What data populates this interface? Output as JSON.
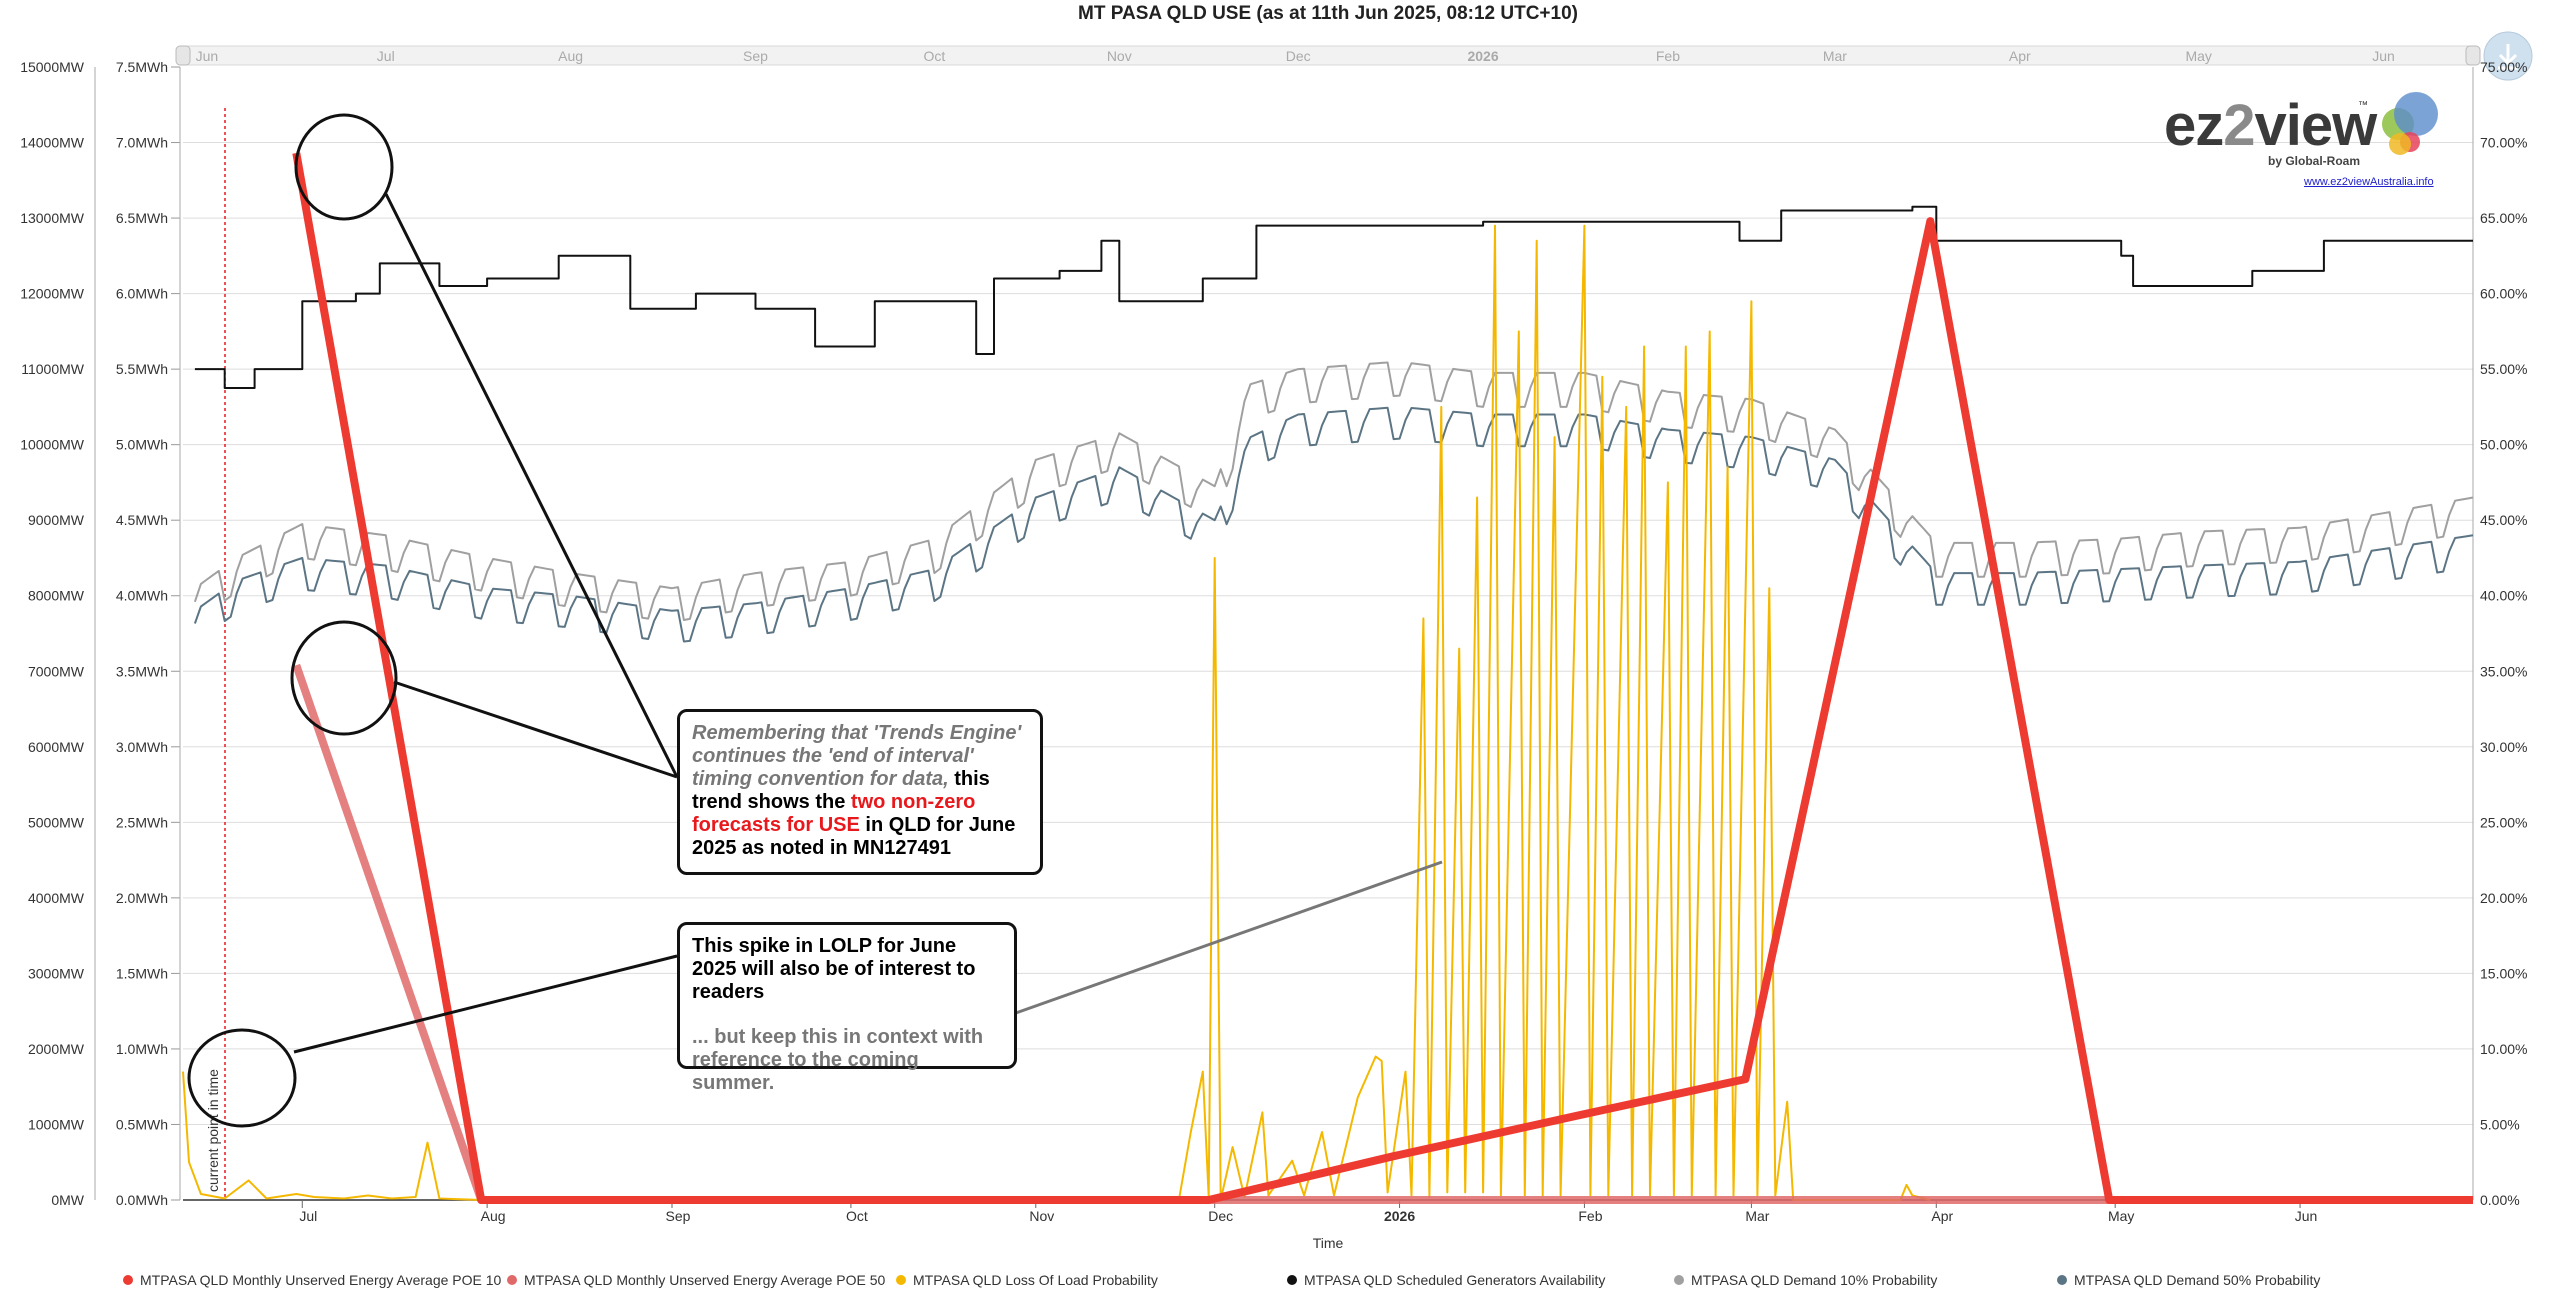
{
  "title": "MT PASA QLD USE (as at 11th Jun 2025, 08:12 UTC+10)",
  "colors": {
    "poe10": "#ee3b32",
    "poe50": "#e06a6a",
    "lolp": "#f5b800",
    "availability": "#111111",
    "demand10": "#a0a0a0",
    "demand50": "#5c7585",
    "marker": "#e8191d"
  },
  "navigator": {
    "labels": [
      "Jun",
      "Jul",
      "Aug",
      "Sep",
      "Oct",
      "Nov",
      "Dec",
      "2026",
      "Feb",
      "Mar",
      "Apr",
      "May",
      "Jun"
    ]
  },
  "axes": {
    "left_mw_ticks": [
      "15000MW",
      "14000MW",
      "13000MW",
      "12000MW",
      "11000MW",
      "10000MW",
      "9000MW",
      "8000MW",
      "7000MW",
      "6000MW",
      "5000MW",
      "4000MW",
      "3000MW",
      "2000MW",
      "1000MW",
      "0MW"
    ],
    "left_mwh_ticks": [
      "7.5MWh",
      "7.0MWh",
      "6.5MWh",
      "6.0MWh",
      "5.5MWh",
      "5.0MWh",
      "4.5MWh",
      "4.0MWh",
      "3.5MWh",
      "3.0MWh",
      "2.5MWh",
      "2.0MWh",
      "1.5MWh",
      "1.0MWh",
      "0.5MWh",
      "0.0MWh"
    ],
    "right_pct_ticks": [
      "75.00%",
      "70.00%",
      "65.00%",
      "60.00%",
      "55.00%",
      "50.00%",
      "45.00%",
      "40.00%",
      "35.00%",
      "30.00%",
      "25.00%",
      "20.00%",
      "15.00%",
      "10.00%",
      "5.00%",
      "0.00%"
    ],
    "x_ticks": [
      "Jul",
      "Aug",
      "Sep",
      "Oct",
      "Nov",
      "Dec",
      "2026",
      "Feb",
      "Mar",
      "Apr",
      "May",
      "Jun"
    ],
    "xlabel": "Time",
    "current_time_label": "current point in time"
  },
  "chart_data": {
    "type": "line",
    "title": "MT PASA QLD USE (as at 11th Jun 2025, 08:12 UTC+10)",
    "xlabel": "Time",
    "ylabel": "",
    "x_range": [
      "2025-06-11",
      "2026-06-30"
    ],
    "y_left_mw_range": [
      0,
      15000
    ],
    "y_left_mwh_range": [
      0,
      7.5
    ],
    "y_right_pct_range": [
      0,
      75
    ],
    "grid": true,
    "legend_position": "bottom",
    "current_time": "2025-06-11",
    "series": [
      {
        "name": "MTPASA QLD Monthly Unserved Energy Average POE 10",
        "axis": "MWh",
        "points": [
          [
            "2025-06-30",
            6.93
          ],
          [
            "2025-07-31",
            0
          ],
          [
            "2025-08-31",
            0
          ],
          [
            "2025-09-30",
            0
          ],
          [
            "2025-10-31",
            0
          ],
          [
            "2025-11-30",
            0
          ],
          [
            "2025-12-31",
            0.29
          ],
          [
            "2026-01-31",
            0.56
          ],
          [
            "2026-02-28",
            0.8
          ],
          [
            "2026-03-31",
            6.48
          ],
          [
            "2026-04-30",
            0
          ],
          [
            "2026-05-31",
            0
          ],
          [
            "2026-06-30",
            0
          ]
        ]
      },
      {
        "name": "MTPASA QLD Monthly Unserved Energy Average POE 50",
        "axis": "MWh",
        "points": [
          [
            "2025-06-30",
            3.54
          ],
          [
            "2025-07-31",
            0
          ],
          [
            "2025-08-31",
            0
          ],
          [
            "2025-09-30",
            0
          ],
          [
            "2025-10-31",
            0
          ],
          [
            "2025-11-30",
            0
          ],
          [
            "2025-12-31",
            0
          ],
          [
            "2026-01-31",
            0
          ],
          [
            "2026-02-28",
            0
          ],
          [
            "2026-03-31",
            0
          ],
          [
            "2026-04-30",
            0
          ],
          [
            "2026-05-31",
            0
          ],
          [
            "2026-06-30",
            0
          ]
        ]
      },
      {
        "name": "MTPASA QLD Loss Of Load Probability",
        "axis": "percent",
        "points": [
          [
            "2025-06-11",
            8.5
          ],
          [
            "2025-06-12",
            2.5
          ],
          [
            "2025-06-14",
            0.4
          ],
          [
            "2025-06-18",
            0.1
          ],
          [
            "2025-06-22",
            1.3
          ],
          [
            "2025-06-25",
            0.1
          ],
          [
            "2025-06-30",
            0.4
          ],
          [
            "2025-07-03",
            0.2
          ],
          [
            "2025-07-08",
            0.1
          ],
          [
            "2025-07-12",
            0.3
          ],
          [
            "2025-07-16",
            0.1
          ],
          [
            "2025-07-20",
            0.2
          ],
          [
            "2025-07-22",
            3.8
          ],
          [
            "2025-07-24",
            0.1
          ],
          [
            "2025-07-31",
            0
          ],
          [
            "2025-11-25",
            0
          ],
          [
            "2025-11-27",
            4.5
          ],
          [
            "2025-11-29",
            8.5
          ],
          [
            "2025-11-30",
            0.2
          ],
          [
            "2025-12-01",
            42.5
          ],
          [
            "2025-12-02",
            0
          ],
          [
            "2025-12-04",
            3.5
          ],
          [
            "2025-12-06",
            0.2
          ],
          [
            "2025-12-09",
            5.8
          ],
          [
            "2025-12-10",
            0.3
          ],
          [
            "2025-12-14",
            2.6
          ],
          [
            "2025-12-16",
            0.3
          ],
          [
            "2025-12-19",
            4.5
          ],
          [
            "2025-12-21",
            0.3
          ],
          [
            "2025-12-25",
            6.8
          ],
          [
            "2025-12-28",
            9.5
          ],
          [
            "2025-12-29",
            9.2
          ],
          [
            "2025-12-30",
            0.5
          ],
          [
            "2026-01-02",
            8.5
          ],
          [
            "2026-01-03",
            0.3
          ],
          [
            "2026-01-05",
            38.5
          ],
          [
            "2026-01-06",
            0.2
          ],
          [
            "2026-01-08",
            52.5
          ],
          [
            "2026-01-09",
            0.5
          ],
          [
            "2026-01-11",
            36.5
          ],
          [
            "2026-01-12",
            0.5
          ],
          [
            "2026-01-14",
            46.5
          ],
          [
            "2026-01-15",
            0.5
          ],
          [
            "2026-01-17",
            64.5
          ],
          [
            "2026-01-18",
            0.3
          ],
          [
            "2026-01-21",
            57.5
          ],
          [
            "2026-01-22",
            0.3
          ],
          [
            "2026-01-24",
            63.5
          ],
          [
            "2026-01-25",
            0.3
          ],
          [
            "2026-01-27",
            50.5
          ],
          [
            "2026-01-28",
            0.3
          ],
          [
            "2026-02-01",
            64.5
          ],
          [
            "2026-02-02",
            0.3
          ],
          [
            "2026-02-04",
            54.5
          ],
          [
            "2026-02-05",
            0.3
          ],
          [
            "2026-02-08",
            52.5
          ],
          [
            "2026-02-09",
            0.3
          ],
          [
            "2026-02-11",
            56.5
          ],
          [
            "2026-02-12",
            0.3
          ],
          [
            "2026-02-15",
            47.5
          ],
          [
            "2026-02-16",
            0.3
          ],
          [
            "2026-02-18",
            56.5
          ],
          [
            "2026-02-19",
            0.3
          ],
          [
            "2026-02-22",
            57.5
          ],
          [
            "2026-02-23",
            0.3
          ],
          [
            "2026-02-25",
            48.5
          ],
          [
            "2026-02-26",
            0.3
          ],
          [
            "2026-03-01",
            59.5
          ],
          [
            "2026-03-02",
            0.3
          ],
          [
            "2026-03-04",
            40.5
          ],
          [
            "2026-03-05",
            0.3
          ],
          [
            "2026-03-07",
            6.5
          ],
          [
            "2026-03-08",
            0
          ],
          [
            "2026-03-26",
            0
          ],
          [
            "2026-03-27",
            1
          ],
          [
            "2026-03-28",
            0.3
          ],
          [
            "2026-03-31",
            0
          ]
        ]
      },
      {
        "name": "MTPASA QLD Scheduled Generators Availability",
        "axis": "MW",
        "points": [
          [
            "2025-06-13",
            11000
          ],
          [
            "2025-06-18",
            10750
          ],
          [
            "2025-06-23",
            11000
          ],
          [
            "2025-07-01",
            11900
          ],
          [
            "2025-07-10",
            12000
          ],
          [
            "2025-07-14",
            12400
          ],
          [
            "2025-07-24",
            12100
          ],
          [
            "2025-08-01",
            12200
          ],
          [
            "2025-08-13",
            12500
          ],
          [
            "2025-08-25",
            11800
          ],
          [
            "2025-09-05",
            12000
          ],
          [
            "2025-09-15",
            11800
          ],
          [
            "2025-09-25",
            11300
          ],
          [
            "2025-10-05",
            11900
          ],
          [
            "2025-10-15",
            11900
          ],
          [
            "2025-10-22",
            11200
          ],
          [
            "2025-10-25",
            12200
          ],
          [
            "2025-11-05",
            12300
          ],
          [
            "2025-11-12",
            12700
          ],
          [
            "2025-11-15",
            11900
          ],
          [
            "2025-11-29",
            12200
          ],
          [
            "2025-12-08",
            12900
          ],
          [
            "2026-01-15",
            12950
          ],
          [
            "2026-02-25",
            12950
          ],
          [
            "2026-02-27",
            12700
          ],
          [
            "2026-03-06",
            13100
          ],
          [
            "2026-03-28",
            13150
          ],
          [
            "2026-04-01",
            12700
          ],
          [
            "2026-04-29",
            12700
          ],
          [
            "2026-05-02",
            12500
          ],
          [
            "2026-05-04",
            12100
          ],
          [
            "2026-05-24",
            12300
          ],
          [
            "2026-06-04",
            12300
          ],
          [
            "2026-06-05",
            12700
          ],
          [
            "2026-06-30",
            12700
          ]
        ]
      },
      {
        "name": "MTPASA QLD Demand 10% Probability",
        "axis": "MW",
        "points": [
          [
            "2025-06-13",
            8100
          ],
          [
            "2025-06-20",
            8500
          ],
          [
            "2025-07-01",
            8950
          ],
          [
            "2025-07-15",
            8800
          ],
          [
            "2025-08-01",
            8500
          ],
          [
            "2025-08-15",
            8300
          ],
          [
            "2025-09-01",
            8100
          ],
          [
            "2025-09-15",
            8300
          ],
          [
            "2025-10-01",
            8450
          ],
          [
            "2025-10-15",
            8750
          ],
          [
            "2025-11-01",
            9800
          ],
          [
            "2025-11-15",
            10150
          ],
          [
            "2025-12-01",
            9450
          ],
          [
            "2025-12-07",
            10800
          ],
          [
            "2025-12-15",
            11000
          ],
          [
            "2026-01-01",
            11100
          ],
          [
            "2026-01-15",
            10950
          ],
          [
            "2026-02-01",
            10950
          ],
          [
            "2026-02-15",
            10700
          ],
          [
            "2026-03-01",
            10600
          ],
          [
            "2026-03-15",
            10200
          ],
          [
            "2026-04-01",
            8700
          ],
          [
            "2026-04-15",
            8700
          ],
          [
            "2026-05-01",
            8750
          ],
          [
            "2026-05-15",
            8850
          ],
          [
            "2026-06-01",
            8900
          ],
          [
            "2026-06-30",
            9300
          ]
        ]
      },
      {
        "name": "MTPASA QLD Demand 50% Probability",
        "axis": "MW",
        "points": [
          [
            "2025-06-13",
            7800
          ],
          [
            "2025-06-20",
            8200
          ],
          [
            "2025-07-01",
            8500
          ],
          [
            "2025-07-15",
            8400
          ],
          [
            "2025-08-01",
            8100
          ],
          [
            "2025-08-15",
            8000
          ],
          [
            "2025-09-01",
            7800
          ],
          [
            "2025-09-15",
            7900
          ],
          [
            "2025-10-01",
            8100
          ],
          [
            "2025-10-15",
            8350
          ],
          [
            "2025-11-01",
            9300
          ],
          [
            "2025-11-15",
            9700
          ],
          [
            "2025-12-01",
            9000
          ],
          [
            "2025-12-07",
            10100
          ],
          [
            "2025-12-15",
            10400
          ],
          [
            "2026-01-01",
            10500
          ],
          [
            "2026-01-15",
            10400
          ],
          [
            "2026-02-01",
            10400
          ],
          [
            "2026-02-15",
            10200
          ],
          [
            "2026-03-01",
            10100
          ],
          [
            "2026-03-15",
            9800
          ],
          [
            "2026-04-01",
            8300
          ],
          [
            "2026-04-15",
            8300
          ],
          [
            "2026-05-01",
            8350
          ],
          [
            "2026-05-15",
            8400
          ],
          [
            "2026-06-01",
            8450
          ],
          [
            "2026-06-30",
            8800
          ]
        ]
      }
    ]
  },
  "legend": [
    {
      "label": "MTPASA QLD Monthly Unserved Energy Average POE 10",
      "color": "#ee3b32"
    },
    {
      "label": "MTPASA QLD Monthly Unserved Energy Average POE 50",
      "color": "#e06a6a"
    },
    {
      "label": "MTPASA QLD Loss Of Load Probability",
      "color": "#f5b800"
    },
    {
      "label": "MTPASA QLD Scheduled Generators Availability",
      "color": "#111111"
    },
    {
      "label": "MTPASA QLD Demand 10% Probability",
      "color": "#a0a0a0"
    },
    {
      "label": "MTPASA QLD Demand 50% Probability",
      "color": "#5c7585"
    }
  ],
  "annotations": {
    "callout1": {
      "intro_italic": "Remembering that 'Trends Engine' continues the 'end of interval' timing convention for data,",
      "mid": " this trend shows the ",
      "highlight": "two non-zero forecasts for USE",
      "end": " in QLD for June 2025 as noted in MN127491"
    },
    "callout2": {
      "line1": "This spike in LOLP for June 2025 will also be of interest to readers",
      "line2": "... but keep this in context with reference to the coming summer."
    }
  },
  "logo": {
    "text_a": "ez",
    "text_b": "2",
    "text_c": "view",
    "tm": "™",
    "sub": "by Global-Roam",
    "url": "www.ez2viewAustralia.info"
  }
}
